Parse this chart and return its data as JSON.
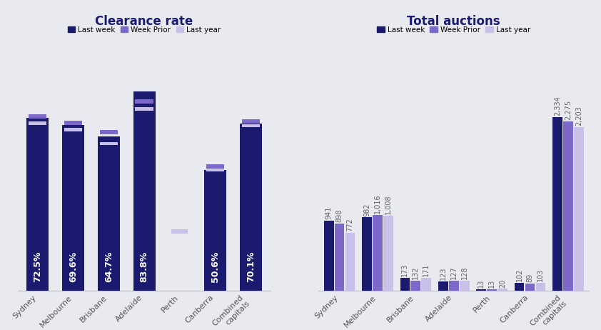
{
  "background_color": "#e8eaf0",
  "title1": "Clearance rate",
  "title2": "Total auctions",
  "categories": [
    "Sydney",
    "Melbourne",
    "Brisbane",
    "Adelaide",
    "Perth",
    "Canberra",
    "Combined\ncapitals"
  ],
  "clearance_last_week": [
    72.5,
    69.6,
    64.7,
    83.8,
    null,
    50.6,
    70.1
  ],
  "clearance_week_prior": [
    74.0,
    71.5,
    67.5,
    80.5,
    null,
    53.0,
    72.0
  ],
  "clearance_last_year": [
    73.5,
    70.8,
    65.0,
    79.5,
    25.0,
    54.0,
    72.5
  ],
  "clearance_labels": [
    "72.5%",
    "69.6%",
    "64.7%",
    "83.8%",
    "",
    "50.6%",
    "70.1%"
  ],
  "auctions_last_week": [
    941,
    982,
    173,
    123,
    13,
    102,
    2334
  ],
  "auctions_week_prior": [
    898,
    1016,
    132,
    127,
    13,
    89,
    2275
  ],
  "auctions_last_year": [
    772,
    1008,
    171,
    128,
    20,
    103,
    2203
  ],
  "color_last_week": "#1a1a6e",
  "color_week_prior": "#7b68c8",
  "color_last_year": "#c8c0e8",
  "legend_labels": [
    "Last week",
    "Week Prior",
    "Last year"
  ],
  "bar_width": 0.28,
  "title_fontsize": 12,
  "tick_fontsize": 8,
  "annotation_fontsize": 7
}
